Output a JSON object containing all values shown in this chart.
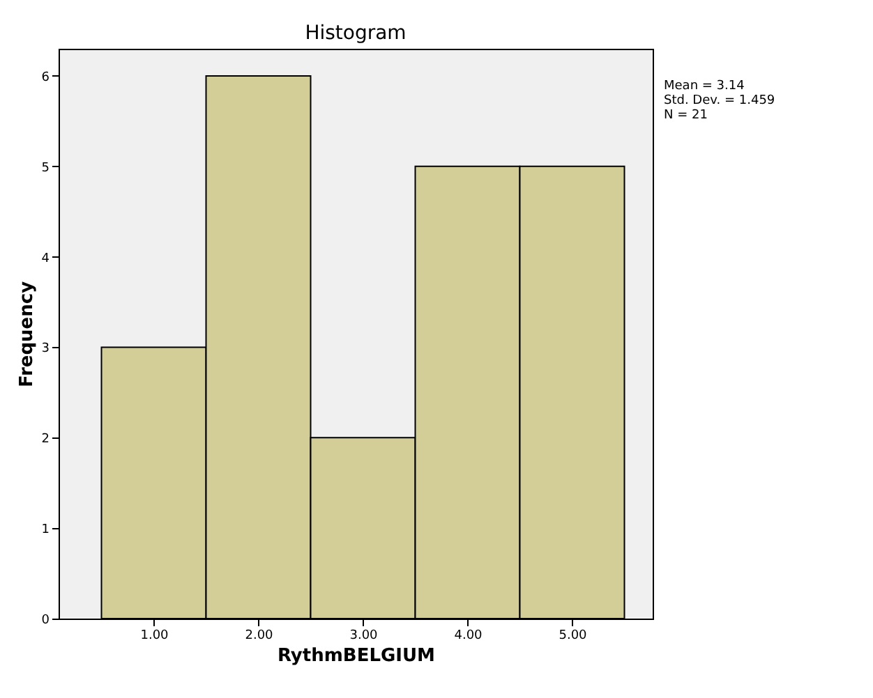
{
  "chart_data": {
    "type": "histogram",
    "title": "Histogram",
    "xlabel": "RythmBELGIUM",
    "ylabel": "Frequency",
    "bins": [
      0.5,
      1.5,
      2.5,
      3.5,
      4.5,
      5.5
    ],
    "values": [
      3,
      6,
      2,
      5,
      5
    ],
    "color": "#d3ce97",
    "xlim": [
      0.09,
      5.77
    ],
    "xticks": [
      {
        "value": 1,
        "label": "1.00"
      },
      {
        "value": 2,
        "label": "2.00"
      },
      {
        "value": 3,
        "label": "3.00"
      },
      {
        "value": 4,
        "label": "4.00"
      },
      {
        "value": 5,
        "label": "5.00"
      }
    ],
    "ylim": [
      0,
      6.3
    ],
    "yticks": [
      0,
      1,
      2,
      3,
      4,
      5,
      6
    ],
    "grid": false,
    "annotations": [
      "Mean = 3.14",
      "Std. Dev. = 1.459",
      "N = 21"
    ]
  }
}
